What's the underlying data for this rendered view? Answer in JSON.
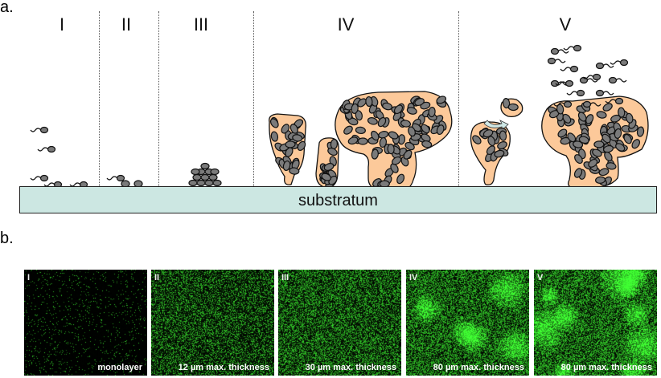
{
  "figure": {
    "panel_a_label": "a.",
    "panel_b_label": "b.",
    "substratum_label": "substratum"
  },
  "stages": [
    {
      "numeral": "I"
    },
    {
      "numeral": "II"
    },
    {
      "numeral": "III"
    },
    {
      "numeral": "IV"
    },
    {
      "numeral": "V"
    }
  ],
  "micrographs": [
    {
      "numeral": "I",
      "caption": "monolayer"
    },
    {
      "numeral": "II",
      "caption": "12  µm max. thickness"
    },
    {
      "numeral": "III",
      "caption": "30 µm max. thickness"
    },
    {
      "numeral": "IV",
      "caption": "80 µm max. thickness"
    },
    {
      "numeral": "V",
      "caption": "80 µm max. thickness"
    }
  ],
  "colors": {
    "matrix_fill": "#fcc99a",
    "cell_fill": "#7a7a7a",
    "substratum_fill": "#cce7e2",
    "micro_green": "#2ecc2e"
  }
}
